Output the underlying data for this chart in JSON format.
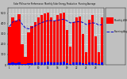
{
  "title": "Solar PV/Inverter Performance  Monthly Solar Energy Production  Running Average",
  "bar_values": [
    370,
    460,
    430,
    490,
    195,
    75,
    310,
    375,
    415,
    455,
    485,
    495,
    505,
    455,
    425,
    485,
    495,
    505,
    335,
    175,
    415,
    455,
    465,
    295,
    125,
    435,
    485,
    275,
    125,
    455
  ],
  "running_avg": [
    370,
    415,
    420,
    438,
    390,
    355,
    348,
    360,
    375,
    392,
    407,
    418,
    427,
    427,
    424,
    430,
    436,
    441,
    425,
    405,
    410,
    415,
    419,
    408,
    389,
    398,
    406,
    400,
    383,
    390
  ],
  "small_bar_values": [
    18,
    22,
    16,
    20,
    9,
    4,
    13,
    18,
    20,
    22,
    24,
    25,
    27,
    23,
    21,
    24,
    25,
    27,
    16,
    9,
    20,
    22,
    23,
    14,
    6,
    21,
    24,
    14,
    6,
    22
  ],
  "bar_color": "#ff0000",
  "small_bar_color": "#0000ff",
  "avg_color": "#0000cc",
  "bg_color": "#c0c0c0",
  "plot_bg": "#c0c0c0",
  "grid_color": "#ffffff",
  "ylim": [
    0,
    550
  ],
  "yticks": [
    0,
    100,
    200,
    300,
    400,
    500
  ],
  "n_bars": 30,
  "legend_labels": [
    "Monthly kWh",
    "Running Avg"
  ],
  "legend_colors": [
    "#ff0000",
    "#0000cc"
  ],
  "outer_bg": "#c0c0c0"
}
